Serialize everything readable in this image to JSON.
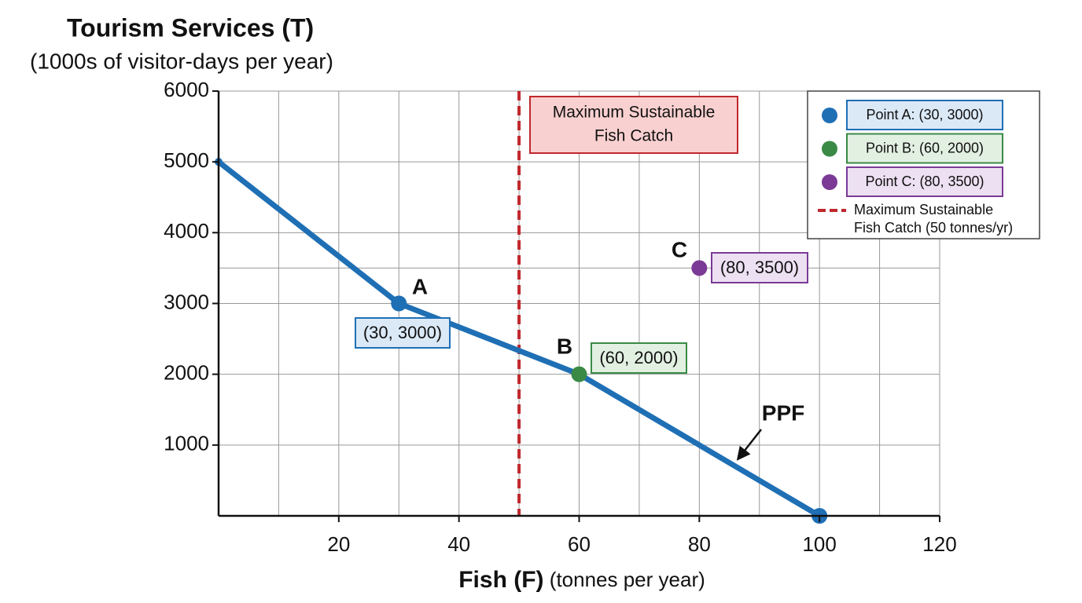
{
  "chart_data": {
    "type": "line",
    "title": "Tourism Services (T)",
    "subtitle": "(1000s of visitor-days per year)",
    "x_label": {
      "main": "Fish (F)",
      "unit": "(tonnes per year)"
    },
    "xlim": [
      0,
      120
    ],
    "ylim": [
      0,
      6000
    ],
    "xticks": [
      20,
      40,
      60,
      80,
      100,
      120
    ],
    "yticks": [
      1000,
      2000,
      3000,
      4000,
      5000,
      6000
    ],
    "x_minor_grid": [
      10,
      30,
      50,
      70,
      90,
      110
    ],
    "y_minor_grid": [
      3500
    ],
    "grid": true,
    "series": [
      {
        "name": "PPF",
        "color": "#1f6fb5",
        "x": [
          0,
          30,
          60,
          100
        ],
        "values": [
          5000,
          3000,
          2000,
          0
        ]
      }
    ],
    "points": [
      {
        "name": "A",
        "legend": "Point A: (30, 3000)",
        "label": "(30, 3000)",
        "x": 30,
        "y": 3000,
        "color": "#1f6fb5",
        "fill": "#dbe9f7"
      },
      {
        "name": "B",
        "legend": "Point B: (60, 2000)",
        "label": "(60, 2000)",
        "x": 60,
        "y": 2000,
        "color": "#3a8a45",
        "fill": "#e2f0e2"
      },
      {
        "name": "C",
        "legend": "Point C: (80, 3500)",
        "label": "(80, 3500)",
        "x": 80,
        "y": 3500,
        "color": "#7b3a96",
        "fill": "#ece0f2"
      }
    ],
    "reference_line": {
      "x": 50,
      "color": "#c0282d",
      "label": [
        "Maximum Sustainable",
        "Fish Catch"
      ],
      "legend": [
        "Maximum Sustainable",
        "Fish Catch (50 tonnes/yr)"
      ]
    }
  }
}
